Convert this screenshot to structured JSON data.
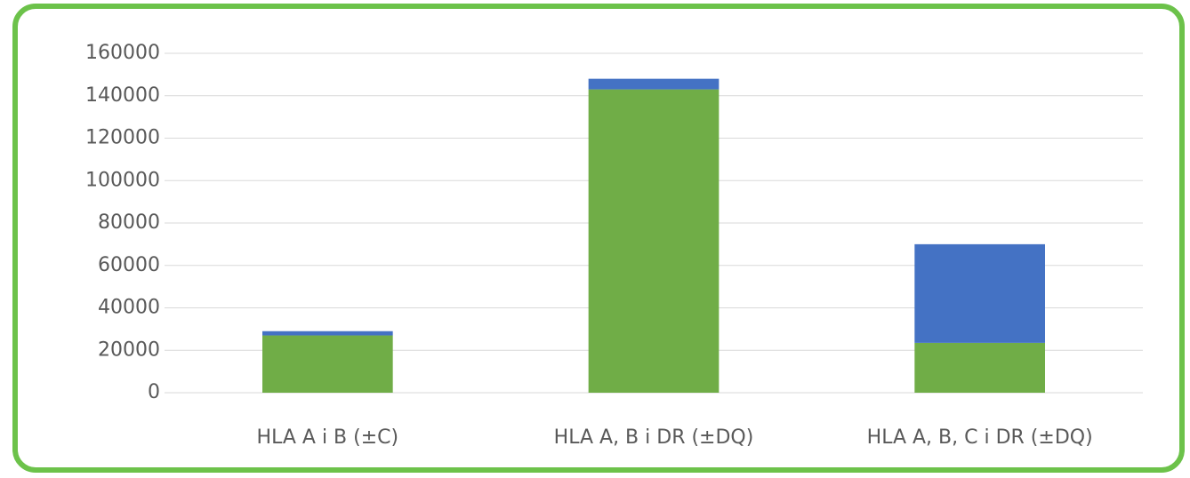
{
  "chart_data": {
    "type": "stacked_bar",
    "categories": [
      "HLA A i B (±C)",
      "HLA A, B i DR (±DQ)",
      "HLA A, B, C i DR (±DQ)"
    ],
    "series": [
      {
        "color": "#70ad47",
        "values": [
          27000,
          143000,
          23500
        ]
      },
      {
        "color": "#4472c4",
        "values": [
          2000,
          5000,
          46500
        ]
      }
    ],
    "ylim": [
      0,
      160000
    ],
    "yticks": [
      0,
      20000,
      40000,
      60000,
      80000,
      100000,
      120000,
      140000,
      160000
    ],
    "grid": true
  }
}
